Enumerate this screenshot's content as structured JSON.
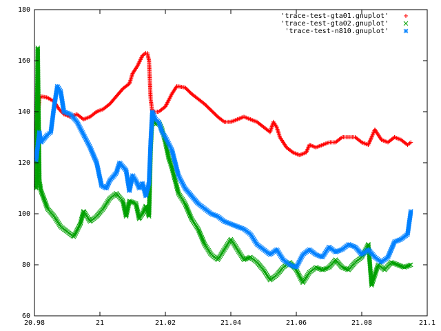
{
  "chart_data": {
    "type": "scatter",
    "title": "",
    "xlabel": "",
    "ylabel": "",
    "xlim": [
      20.98,
      21.1
    ],
    "ylim": [
      60,
      180
    ],
    "x_ticks": [
      "20.98",
      "21",
      "21.02",
      "21.04",
      "21.06",
      "21.08",
      "21.1"
    ],
    "y_ticks": [
      "60",
      "80",
      "100",
      "120",
      "140",
      "160",
      "180"
    ],
    "grid": false,
    "legend_position": "top-right",
    "series": [
      {
        "name": "'trace-test-gta01.gnuplot'",
        "marker": "plus",
        "color": "#ff0000",
        "points": [
          [
            20.9805,
            133
          ],
          [
            20.981,
            137
          ],
          [
            20.9815,
            145
          ],
          [
            20.982,
            146
          ],
          [
            20.984,
            145.5
          ],
          [
            20.986,
            144
          ],
          [
            20.9875,
            141
          ],
          [
            20.989,
            139
          ],
          [
            20.991,
            138
          ],
          [
            20.993,
            139
          ],
          [
            20.995,
            137
          ],
          [
            20.997,
            138
          ],
          [
            20.999,
            140
          ],
          [
            21.001,
            141
          ],
          [
            21.003,
            143
          ],
          [
            21.005,
            146
          ],
          [
            21.007,
            149
          ],
          [
            21.009,
            151
          ],
          [
            21.01,
            155
          ],
          [
            21.0115,
            158
          ],
          [
            21.013,
            162
          ],
          [
            21.014,
            163
          ],
          [
            21.0145,
            163
          ],
          [
            21.015,
            160
          ],
          [
            21.0155,
            145
          ],
          [
            21.016,
            140
          ],
          [
            21.018,
            140
          ],
          [
            21.02,
            142
          ],
          [
            21.022,
            147
          ],
          [
            21.0235,
            150
          ],
          [
            21.026,
            149.5
          ],
          [
            21.028,
            147
          ],
          [
            21.03,
            145
          ],
          [
            21.032,
            143
          ],
          [
            21.034,
            140.5
          ],
          [
            21.036,
            138
          ],
          [
            21.038,
            136
          ],
          [
            21.04,
            136
          ],
          [
            21.042,
            137
          ],
          [
            21.044,
            138
          ],
          [
            21.046,
            137
          ],
          [
            21.048,
            136
          ],
          [
            21.05,
            134
          ],
          [
            21.052,
            132
          ],
          [
            21.053,
            136
          ],
          [
            21.054,
            134
          ],
          [
            21.055,
            130
          ],
          [
            21.057,
            126
          ],
          [
            21.059,
            124
          ],
          [
            21.061,
            123
          ],
          [
            21.063,
            124
          ],
          [
            21.064,
            127
          ],
          [
            21.066,
            126
          ],
          [
            21.068,
            127
          ],
          [
            21.07,
            128
          ],
          [
            21.072,
            128
          ],
          [
            21.074,
            130
          ],
          [
            21.076,
            130
          ],
          [
            21.078,
            130
          ],
          [
            21.08,
            128
          ],
          [
            21.082,
            127
          ],
          [
            21.083,
            130
          ],
          [
            21.084,
            133
          ],
          [
            21.086,
            129
          ],
          [
            21.088,
            128
          ],
          [
            21.09,
            130
          ],
          [
            21.092,
            129
          ],
          [
            21.094,
            127
          ],
          [
            21.095,
            128
          ]
        ]
      },
      {
        "name": "'trace-test-gta02.gnuplot'",
        "marker": "cross",
        "color": "#00a000",
        "points": [
          [
            20.9805,
            110
          ],
          [
            20.9808,
            140
          ],
          [
            20.981,
            165
          ],
          [
            20.9815,
            113
          ],
          [
            20.982,
            109
          ],
          [
            20.984,
            102
          ],
          [
            20.986,
            99
          ],
          [
            20.988,
            95
          ],
          [
            20.99,
            93
          ],
          [
            20.992,
            91
          ],
          [
            20.994,
            96
          ],
          [
            20.995,
            101
          ],
          [
            20.997,
            97
          ],
          [
            20.999,
            99
          ],
          [
            21.001,
            102
          ],
          [
            21.003,
            106
          ],
          [
            21.005,
            108
          ],
          [
            21.007,
            105
          ],
          [
            21.008,
            99
          ],
          [
            21.009,
            105
          ],
          [
            21.011,
            104
          ],
          [
            21.012,
            98
          ],
          [
            21.013,
            100
          ],
          [
            21.014,
            103
          ],
          [
            21.015,
            99
          ],
          [
            21.0155,
            125
          ],
          [
            21.016,
            138
          ],
          [
            21.017,
            135
          ],
          [
            21.018,
            136
          ],
          [
            21.019,
            133
          ],
          [
            21.02,
            128
          ],
          [
            21.021,
            122
          ],
          [
            21.022,
            118
          ],
          [
            21.024,
            108
          ],
          [
            21.026,
            104
          ],
          [
            21.028,
            98
          ],
          [
            21.03,
            94
          ],
          [
            21.032,
            88
          ],
          [
            21.034,
            84
          ],
          [
            21.036,
            82
          ],
          [
            21.038,
            86
          ],
          [
            21.04,
            90
          ],
          [
            21.042,
            86
          ],
          [
            21.044,
            82
          ],
          [
            21.046,
            83
          ],
          [
            21.048,
            81
          ],
          [
            21.05,
            78
          ],
          [
            21.052,
            74
          ],
          [
            21.054,
            76
          ],
          [
            21.056,
            79
          ],
          [
            21.058,
            81
          ],
          [
            21.06,
            78
          ],
          [
            21.062,
            73
          ],
          [
            21.064,
            77
          ],
          [
            21.066,
            79
          ],
          [
            21.068,
            78
          ],
          [
            21.07,
            79
          ],
          [
            21.072,
            82
          ],
          [
            21.074,
            79
          ],
          [
            21.076,
            78
          ],
          [
            21.078,
            81
          ],
          [
            21.08,
            83
          ],
          [
            21.082,
            88
          ],
          [
            21.083,
            72
          ],
          [
            21.085,
            80
          ],
          [
            21.087,
            78
          ],
          [
            21.089,
            81
          ],
          [
            21.091,
            80
          ],
          [
            21.093,
            79
          ],
          [
            21.095,
            80
          ]
        ]
      },
      {
        "name": "'trace-test-n810.gnuplot'",
        "marker": "star",
        "color": "#0080ff",
        "points": [
          [
            20.9805,
            121
          ],
          [
            20.9815,
            132
          ],
          [
            20.982,
            128
          ],
          [
            20.984,
            131
          ],
          [
            20.985,
            132
          ],
          [
            20.986,
            142
          ],
          [
            20.987,
            150
          ],
          [
            20.988,
            148
          ],
          [
            20.989,
            140
          ],
          [
            20.991,
            139
          ],
          [
            20.993,
            136
          ],
          [
            20.995,
            131
          ],
          [
            20.997,
            126
          ],
          [
            20.999,
            120
          ],
          [
            21.0005,
            111
          ],
          [
            21.002,
            110
          ],
          [
            21.003,
            113
          ],
          [
            21.005,
            116
          ],
          [
            21.006,
            120
          ],
          [
            21.008,
            117
          ],
          [
            21.009,
            109
          ],
          [
            21.01,
            115
          ],
          [
            21.011,
            113
          ],
          [
            21.012,
            110
          ],
          [
            21.013,
            112
          ],
          [
            21.014,
            107
          ],
          [
            21.015,
            112
          ],
          [
            21.0155,
            128
          ],
          [
            21.016,
            140
          ],
          [
            21.017,
            137
          ],
          [
            21.018,
            136
          ],
          [
            21.019,
            132
          ],
          [
            21.02,
            130
          ],
          [
            21.022,
            125
          ],
          [
            21.024,
            115
          ],
          [
            21.026,
            110
          ],
          [
            21.028,
            107
          ],
          [
            21.03,
            104
          ],
          [
            21.032,
            102
          ],
          [
            21.034,
            100
          ],
          [
            21.036,
            99
          ],
          [
            21.038,
            97
          ],
          [
            21.04,
            96
          ],
          [
            21.042,
            95
          ],
          [
            21.044,
            94
          ],
          [
            21.046,
            92
          ],
          [
            21.048,
            88
          ],
          [
            21.05,
            86
          ],
          [
            21.052,
            84
          ],
          [
            21.054,
            86
          ],
          [
            21.056,
            82
          ],
          [
            21.058,
            80
          ],
          [
            21.06,
            79
          ],
          [
            21.062,
            84
          ],
          [
            21.064,
            86
          ],
          [
            21.066,
            84
          ],
          [
            21.068,
            83
          ],
          [
            21.07,
            87
          ],
          [
            21.072,
            85
          ],
          [
            21.074,
            86
          ],
          [
            21.076,
            88
          ],
          [
            21.078,
            87
          ],
          [
            21.08,
            84
          ],
          [
            21.082,
            86
          ],
          [
            21.084,
            83
          ],
          [
            21.086,
            81
          ],
          [
            21.088,
            83
          ],
          [
            21.09,
            89
          ],
          [
            21.092,
            90
          ],
          [
            21.094,
            92
          ],
          [
            21.095,
            101
          ]
        ]
      }
    ]
  }
}
